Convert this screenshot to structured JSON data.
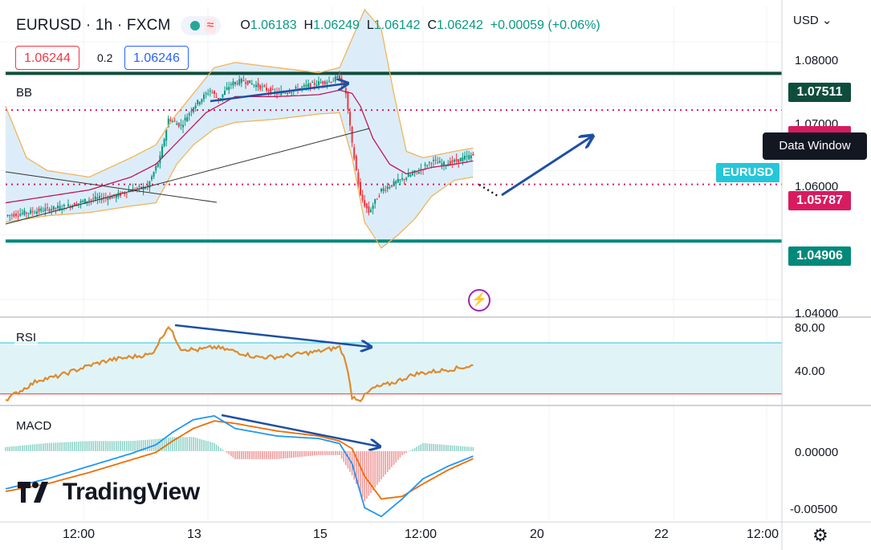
{
  "header": {
    "symbol": "EURUSD · 1h · FXCM",
    "open_label": "O",
    "open": "1.06183",
    "high_label": "H",
    "high": "1.06249",
    "low_label": "L",
    "low": "1.06142",
    "close_label": "C",
    "close": "1.06242",
    "change": "+0.00059 (+0.06%)",
    "wave_icon": "≈"
  },
  "quotes": {
    "sell": "1.06244",
    "spread": "0.2",
    "buy": "1.06246"
  },
  "indicators": {
    "bb": "BB",
    "rsi": "RSI",
    "macd": "MACD"
  },
  "currency": "USD",
  "tooltip": "Data Window",
  "symbol_tag": "EURUSD",
  "brand": "TradingView",
  "colors": {
    "up": "#089981",
    "down": "#f23645",
    "bb_fill": "#d6eaf8",
    "bb_band": "#f0b55a",
    "bb_basis": "#c2185b",
    "rsi": "#e08a2b",
    "macd": "#2196f3",
    "signal": "#ef6c00",
    "arrow": "#1e4fa3",
    "level_dark": "#0e4d3c",
    "level_teal": "#00897b",
    "level_red": "#d81b60"
  },
  "chart_data": [
    {
      "type": "candlestick",
      "pane": "price",
      "ylim": [
        1.0375,
        1.0855
      ],
      "y_ticks": [
        "1.08000",
        "1.07000",
        "1.06000",
        "1.04000"
      ],
      "x_ticks": [
        "12:00",
        "13",
        "15",
        "12:00",
        "20",
        "22",
        "12:00"
      ],
      "horizontal_levels": [
        {
          "value": 1.07511,
          "label": "1.07511",
          "color": "#0e4d3c",
          "style": "solid"
        },
        {
          "value": 1.0694,
          "label": "",
          "color": "#d81b60",
          "style": "dotted"
        },
        {
          "value": 1.05787,
          "label": "1.05787",
          "color": "#d81b60",
          "style": "dotted"
        },
        {
          "value": 1.04906,
          "label": "1.04906",
          "color": "#00897b",
          "style": "solid"
        }
      ],
      "close_path": [
        [
          0,
          1.053
        ],
        [
          10,
          1.0535
        ],
        [
          20,
          1.054
        ],
        [
          30,
          1.0545
        ],
        [
          40,
          1.0555
        ],
        [
          52,
          1.056
        ],
        [
          60,
          1.057
        ],
        [
          68,
          1.0575
        ],
        [
          74,
          1.062
        ],
        [
          78,
          1.068
        ],
        [
          84,
          1.067
        ],
        [
          90,
          1.07
        ],
        [
          98,
          1.0725
        ],
        [
          102,
          1.071
        ],
        [
          108,
          1.0735
        ],
        [
          114,
          1.074
        ],
        [
          122,
          1.073
        ],
        [
          130,
          1.072
        ],
        [
          138,
          1.0725
        ],
        [
          148,
          1.0735
        ],
        [
          156,
          1.074
        ],
        [
          160,
          1.0745
        ],
        [
          163,
          1.072
        ],
        [
          166,
          1.064
        ],
        [
          170,
          1.056
        ],
        [
          174,
          1.0535
        ],
        [
          180,
          1.057
        ],
        [
          186,
          1.058
        ],
        [
          192,
          1.059
        ],
        [
          198,
          1.06
        ],
        [
          204,
          1.0615
        ],
        [
          210,
          1.061
        ],
        [
          216,
          1.0615
        ],
        [
          220,
          1.062
        ],
        [
          224,
          1.0624
        ]
      ],
      "bollinger_upper": [
        [
          0,
          1.07
        ],
        [
          10,
          1.062
        ],
        [
          20,
          1.06
        ],
        [
          40,
          1.059
        ],
        [
          60,
          1.062
        ],
        [
          72,
          1.064
        ],
        [
          80,
          1.068
        ],
        [
          90,
          1.072
        ],
        [
          100,
          1.076
        ],
        [
          110,
          1.0768
        ],
        [
          130,
          1.076
        ],
        [
          150,
          1.0752
        ],
        [
          160,
          1.076
        ],
        [
          168,
          1.082
        ],
        [
          172,
          1.085
        ],
        [
          180,
          1.082
        ],
        [
          186,
          1.072
        ],
        [
          192,
          1.063
        ],
        [
          200,
          1.062
        ],
        [
          215,
          1.063
        ],
        [
          224,
          1.0635
        ]
      ],
      "bollinger_lower": [
        [
          0,
          1.052
        ],
        [
          10,
          1.0525
        ],
        [
          20,
          1.053
        ],
        [
          40,
          1.0535
        ],
        [
          60,
          1.0545
        ],
        [
          72,
          1.055
        ],
        [
          82,
          1.061
        ],
        [
          90,
          1.064
        ],
        [
          100,
          1.0665
        ],
        [
          110,
          1.0675
        ],
        [
          130,
          1.068
        ],
        [
          150,
          1.0688
        ],
        [
          160,
          1.069
        ],
        [
          166,
          1.062
        ],
        [
          172,
          1.052
        ],
        [
          180,
          1.048
        ],
        [
          188,
          1.05
        ],
        [
          196,
          1.0525
        ],
        [
          204,
          1.056
        ],
        [
          215,
          1.0585
        ],
        [
          224,
          1.059
        ]
      ],
      "bollinger_basis": [
        [
          0,
          1.055
        ],
        [
          20,
          1.056
        ],
        [
          40,
          1.057
        ],
        [
          60,
          1.059
        ],
        [
          72,
          1.061
        ],
        [
          84,
          1.065
        ],
        [
          96,
          1.069
        ],
        [
          110,
          1.0715
        ],
        [
          130,
          1.0715
        ],
        [
          150,
          1.0718
        ],
        [
          160,
          1.0725
        ],
        [
          166,
          1.072
        ],
        [
          170,
          1.07
        ],
        [
          176,
          1.065
        ],
        [
          184,
          1.061
        ],
        [
          192,
          1.0595
        ],
        [
          204,
          1.0605
        ],
        [
          215,
          1.061
        ],
        [
          224,
          1.0615
        ]
      ]
    },
    {
      "type": "line",
      "pane": "rsi",
      "ylim": [
        25,
        85
      ],
      "y_ticks": [
        "80.00",
        "40.00"
      ],
      "band": [
        32,
        68
      ],
      "series": [
        {
          "values": [
            [
              0,
              28
            ],
            [
              8,
              35
            ],
            [
              16,
              42
            ],
            [
              24,
              44
            ],
            [
              32,
              48
            ],
            [
              40,
              52
            ],
            [
              50,
              56
            ],
            [
              60,
              58
            ],
            [
              70,
              60
            ],
            [
              78,
              80
            ],
            [
              84,
              64
            ],
            [
              92,
              63
            ],
            [
              100,
              65
            ],
            [
              110,
              62
            ],
            [
              120,
              58
            ],
            [
              130,
              58
            ],
            [
              140,
              60
            ],
            [
              150,
              62
            ],
            [
              160,
              65
            ],
            [
              163,
              55
            ],
            [
              166,
              30
            ],
            [
              170,
              28
            ],
            [
              176,
              36
            ],
            [
              186,
              40
            ],
            [
              196,
              46
            ],
            [
              206,
              48
            ],
            [
              216,
              50
            ],
            [
              224,
              52
            ]
          ]
        }
      ]
    },
    {
      "type": "line",
      "pane": "macd",
      "ylim": [
        -0.0055,
        0.0035
      ],
      "y_ticks": [
        "0.00000",
        "-0.00500"
      ],
      "series": [
        {
          "name": "MACD",
          "values": [
            [
              0,
              -0.003
            ],
            [
              20,
              -0.0022
            ],
            [
              40,
              -0.0012
            ],
            [
              60,
              -0.0002
            ],
            [
              72,
              0.0005
            ],
            [
              80,
              0.0015
            ],
            [
              90,
              0.0025
            ],
            [
              100,
              0.0028
            ],
            [
              110,
              0.0018
            ],
            [
              130,
              0.0012
            ],
            [
              150,
              0.001
            ],
            [
              160,
              0.0006
            ],
            [
              166,
              -0.001
            ],
            [
              172,
              -0.0045
            ],
            [
              180,
              -0.0052
            ],
            [
              190,
              -0.0038
            ],
            [
              200,
              -0.0022
            ],
            [
              212,
              -0.0012
            ],
            [
              224,
              -0.0004
            ]
          ]
        },
        {
          "name": "Signal",
          "values": [
            [
              0,
              -0.0032
            ],
            [
              20,
              -0.0026
            ],
            [
              40,
              -0.0017
            ],
            [
              60,
              -0.0007
            ],
            [
              72,
              -0.0001
            ],
            [
              80,
              0.0008
            ],
            [
              90,
              0.0018
            ],
            [
              100,
              0.0024
            ],
            [
              110,
              0.0022
            ],
            [
              130,
              0.0016
            ],
            [
              150,
              0.0012
            ],
            [
              160,
              0.0008
            ],
            [
              166,
              0.0002
            ],
            [
              172,
              -0.002
            ],
            [
              180,
              -0.0038
            ],
            [
              190,
              -0.0036
            ],
            [
              200,
              -0.0026
            ],
            [
              212,
              -0.0015
            ],
            [
              224,
              -0.0006
            ]
          ]
        }
      ]
    }
  ]
}
